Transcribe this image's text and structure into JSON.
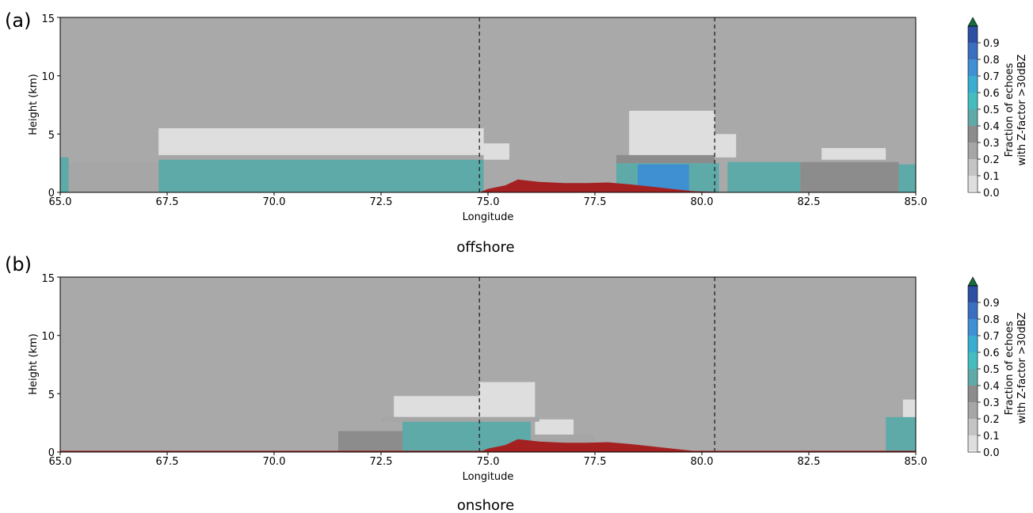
{
  "chart_data": [
    {
      "panel_label": "(a)",
      "type": "heatmap",
      "caption": "offshore",
      "xlabel": "Longitude",
      "ylabel": "Height (km)",
      "xlim": [
        65.0,
        85.0
      ],
      "ylim": [
        0,
        15
      ],
      "xticks": [
        "65.0",
        "67.5",
        "70.0",
        "72.5",
        "75.0",
        "77.5",
        "80.0",
        "82.5",
        "85.0"
      ],
      "yticks": [
        "0",
        "5",
        "10",
        "15"
      ],
      "background_color": "#a9a9a9",
      "vlines": [
        74.8,
        80.3
      ],
      "terrain": [
        [
          74.8,
          0
        ],
        [
          75.0,
          0.3
        ],
        [
          75.4,
          0.6
        ],
        [
          75.7,
          1.1
        ],
        [
          76.2,
          0.9
        ],
        [
          76.8,
          0.8
        ],
        [
          77.3,
          0.8
        ],
        [
          77.8,
          0.85
        ],
        [
          78.3,
          0.7
        ],
        [
          78.8,
          0.5
        ],
        [
          79.3,
          0.3
        ],
        [
          79.8,
          0.1
        ],
        [
          80.3,
          0.05
        ],
        [
          80.6,
          0
        ]
      ],
      "echo_regions": [
        {
          "x": [
            67.3,
            74.9
          ],
          "top_km": 5.5,
          "base_km": 3.0,
          "fraction": 0.05
        },
        {
          "x": [
            74.8,
            75.5
          ],
          "top_km": 4.2,
          "base_km": 2.8,
          "fraction": 0.05
        },
        {
          "x": [
            78.3,
            80.3
          ],
          "top_km": 7.0,
          "base_km": 3.0,
          "fraction": 0.05
        },
        {
          "x": [
            80.3,
            80.8
          ],
          "top_km": 5.0,
          "base_km": 3.0,
          "fraction": 0.05
        },
        {
          "x": [
            82.8,
            84.3
          ],
          "top_km": 3.8,
          "base_km": 2.8,
          "fraction": 0.05
        },
        {
          "x": [
            67.3,
            74.9
          ],
          "top_km": 3.2,
          "base_km": 2.6,
          "fraction": 0.25
        },
        {
          "x": [
            67.3,
            74.9
          ],
          "top_km": 2.8,
          "base_km": 0,
          "fraction": 0.42
        },
        {
          "x": [
            65.0,
            65.2
          ],
          "top_km": 3.0,
          "base_km": 0,
          "fraction": 0.4
        },
        {
          "x": [
            65.2,
            67.3
          ],
          "top_km": 2.6,
          "base_km": 0,
          "fraction": 0.2
        },
        {
          "x": [
            78.0,
            80.3
          ],
          "top_km": 3.2,
          "base_km": 2.5,
          "fraction": 0.3
        },
        {
          "x": [
            78.0,
            80.4
          ],
          "top_km": 2.5,
          "base_km": 0,
          "fraction": 0.45
        },
        {
          "x": [
            78.5,
            79.7
          ],
          "top_km": 2.4,
          "base_km": 0,
          "fraction": 0.75
        },
        {
          "x": [
            80.6,
            82.3
          ],
          "top_km": 2.6,
          "base_km": 0,
          "fraction": 0.4
        },
        {
          "x": [
            82.3,
            84.6
          ],
          "top_km": 2.6,
          "base_km": 0,
          "fraction": 0.35
        },
        {
          "x": [
            84.6,
            85.0
          ],
          "top_km": 2.4,
          "base_km": 0,
          "fraction": 0.4
        }
      ]
    },
    {
      "panel_label": "(b)",
      "type": "heatmap",
      "caption": "onshore",
      "xlabel": "Longitude",
      "ylabel": "Height (km)",
      "xlim": [
        65.0,
        85.0
      ],
      "ylim": [
        0,
        15
      ],
      "xticks": [
        "65.0",
        "67.5",
        "70.0",
        "72.5",
        "75.0",
        "77.5",
        "80.0",
        "82.5",
        "85.0"
      ],
      "yticks": [
        "0",
        "5",
        "10",
        "15"
      ],
      "background_color": "#a9a9a9",
      "vlines": [
        74.8,
        80.3
      ],
      "terrain": [
        [
          74.8,
          0
        ],
        [
          75.0,
          0.3
        ],
        [
          75.4,
          0.6
        ],
        [
          75.7,
          1.1
        ],
        [
          76.2,
          0.9
        ],
        [
          76.8,
          0.8
        ],
        [
          77.3,
          0.8
        ],
        [
          77.8,
          0.85
        ],
        [
          78.3,
          0.7
        ],
        [
          78.8,
          0.5
        ],
        [
          79.3,
          0.3
        ],
        [
          79.8,
          0.1
        ],
        [
          80.3,
          0.05
        ],
        [
          80.6,
          0
        ]
      ],
      "echo_regions": [
        {
          "x": [
            72.8,
            74.8
          ],
          "top_km": 4.8,
          "base_km": 3.0,
          "fraction": 0.05
        },
        {
          "x": [
            74.8,
            76.1
          ],
          "top_km": 6.0,
          "base_km": 3.0,
          "fraction": 0.05
        },
        {
          "x": [
            76.1,
            77.0
          ],
          "top_km": 2.8,
          "base_km": 1.3,
          "fraction": 0.05
        },
        {
          "x": [
            72.5,
            76.2
          ],
          "top_km": 3.0,
          "base_km": 2.6,
          "fraction": 0.25
        },
        {
          "x": [
            73.0,
            76.0
          ],
          "top_km": 2.6,
          "base_km": 0,
          "fraction": 0.42
        },
        {
          "x": [
            71.5,
            73.0
          ],
          "top_km": 1.8,
          "base_km": 0,
          "fraction": 0.35
        },
        {
          "x": [
            76.0,
            77.5
          ],
          "top_km": 1.5,
          "base_km": 0,
          "fraction": 0.2
        },
        {
          "x": [
            84.3,
            85.0
          ],
          "top_km": 3.0,
          "base_km": 0,
          "fraction": 0.4
        },
        {
          "x": [
            84.7,
            85.0
          ],
          "top_km": 4.5,
          "base_km": 3.0,
          "fraction": 0.05
        }
      ]
    }
  ],
  "colorbar": {
    "label_line1": "Fraction of echoes",
    "label_line2": "with Z-factor >30dBZ",
    "ticks": [
      "0.0",
      "0.1",
      "0.2",
      "0.3",
      "0.4",
      "0.5",
      "0.6",
      "0.7",
      "0.8",
      "0.9"
    ],
    "extend": "max",
    "colors": [
      "#f2f2f2",
      "#dedede",
      "#c4c4c4",
      "#a6a6a6",
      "#8c8c8c",
      "#5eaaa8",
      "#45bdbf",
      "#3aaed1",
      "#3f8fd3",
      "#3a6ebe",
      "#2c4fa3",
      "#1e3778",
      "#166b3c"
    ]
  }
}
